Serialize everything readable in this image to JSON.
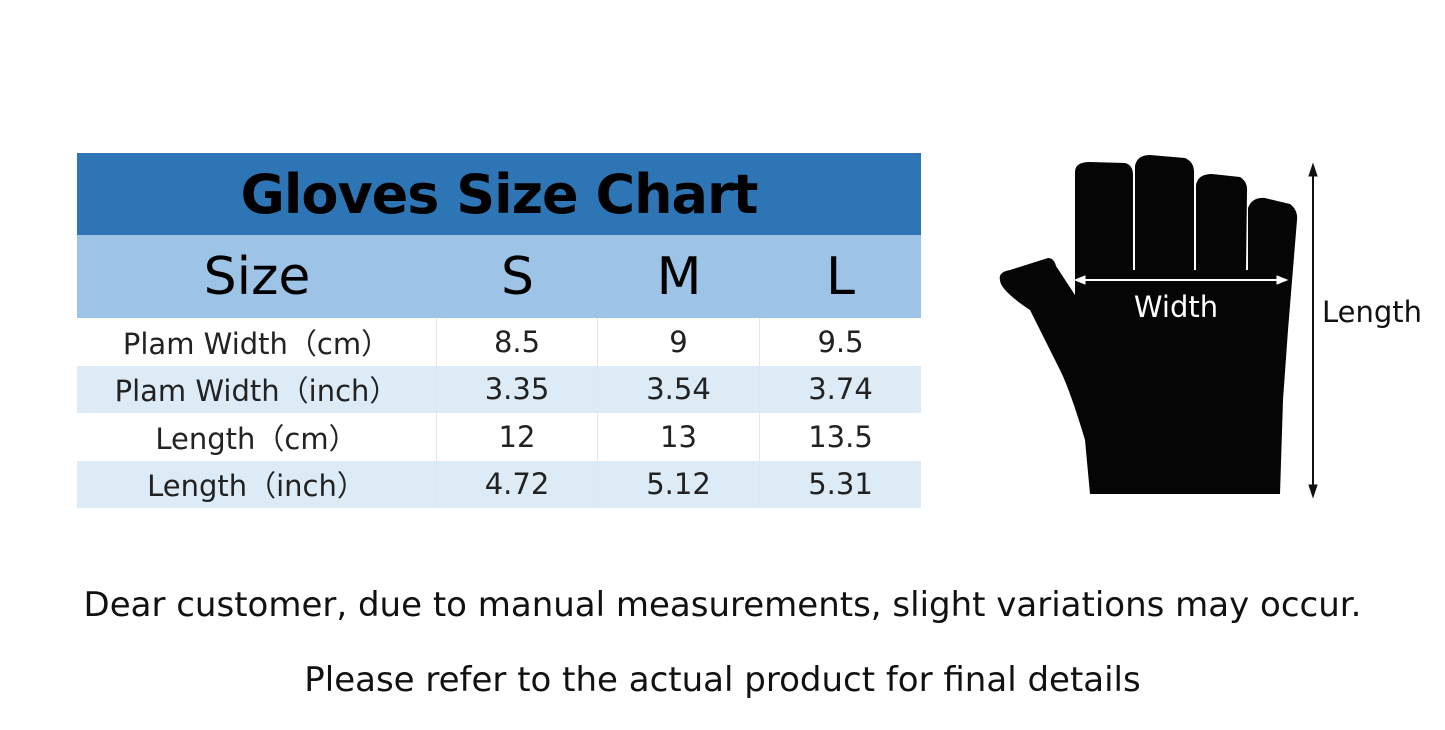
{
  "table": {
    "title": "Gloves Size Chart",
    "header": [
      "Size",
      "S",
      "M",
      "L"
    ],
    "rows": [
      [
        "Plam Width（cm）",
        "8.5",
        "9",
        "9.5"
      ],
      [
        "Plam Width（inch）",
        "3.35",
        "3.54",
        "3.74"
      ],
      [
        "Length（cm）",
        "12",
        "13",
        "13.5"
      ],
      [
        "Length（inch）",
        "4.72",
        "5.12",
        "5.31"
      ]
    ],
    "colors": {
      "title_bg": "#2e75b6",
      "header_bg": "#9dc3e6",
      "alt_row_bg": "#ddebf7"
    }
  },
  "diagram": {
    "width_label": "Width",
    "length_label": "Length",
    "image": "black-fingerless-glove"
  },
  "notes": [
    "Dear customer, due to manual measurements, slight variations may occur.",
    "Please refer to the actual product for final details"
  ]
}
